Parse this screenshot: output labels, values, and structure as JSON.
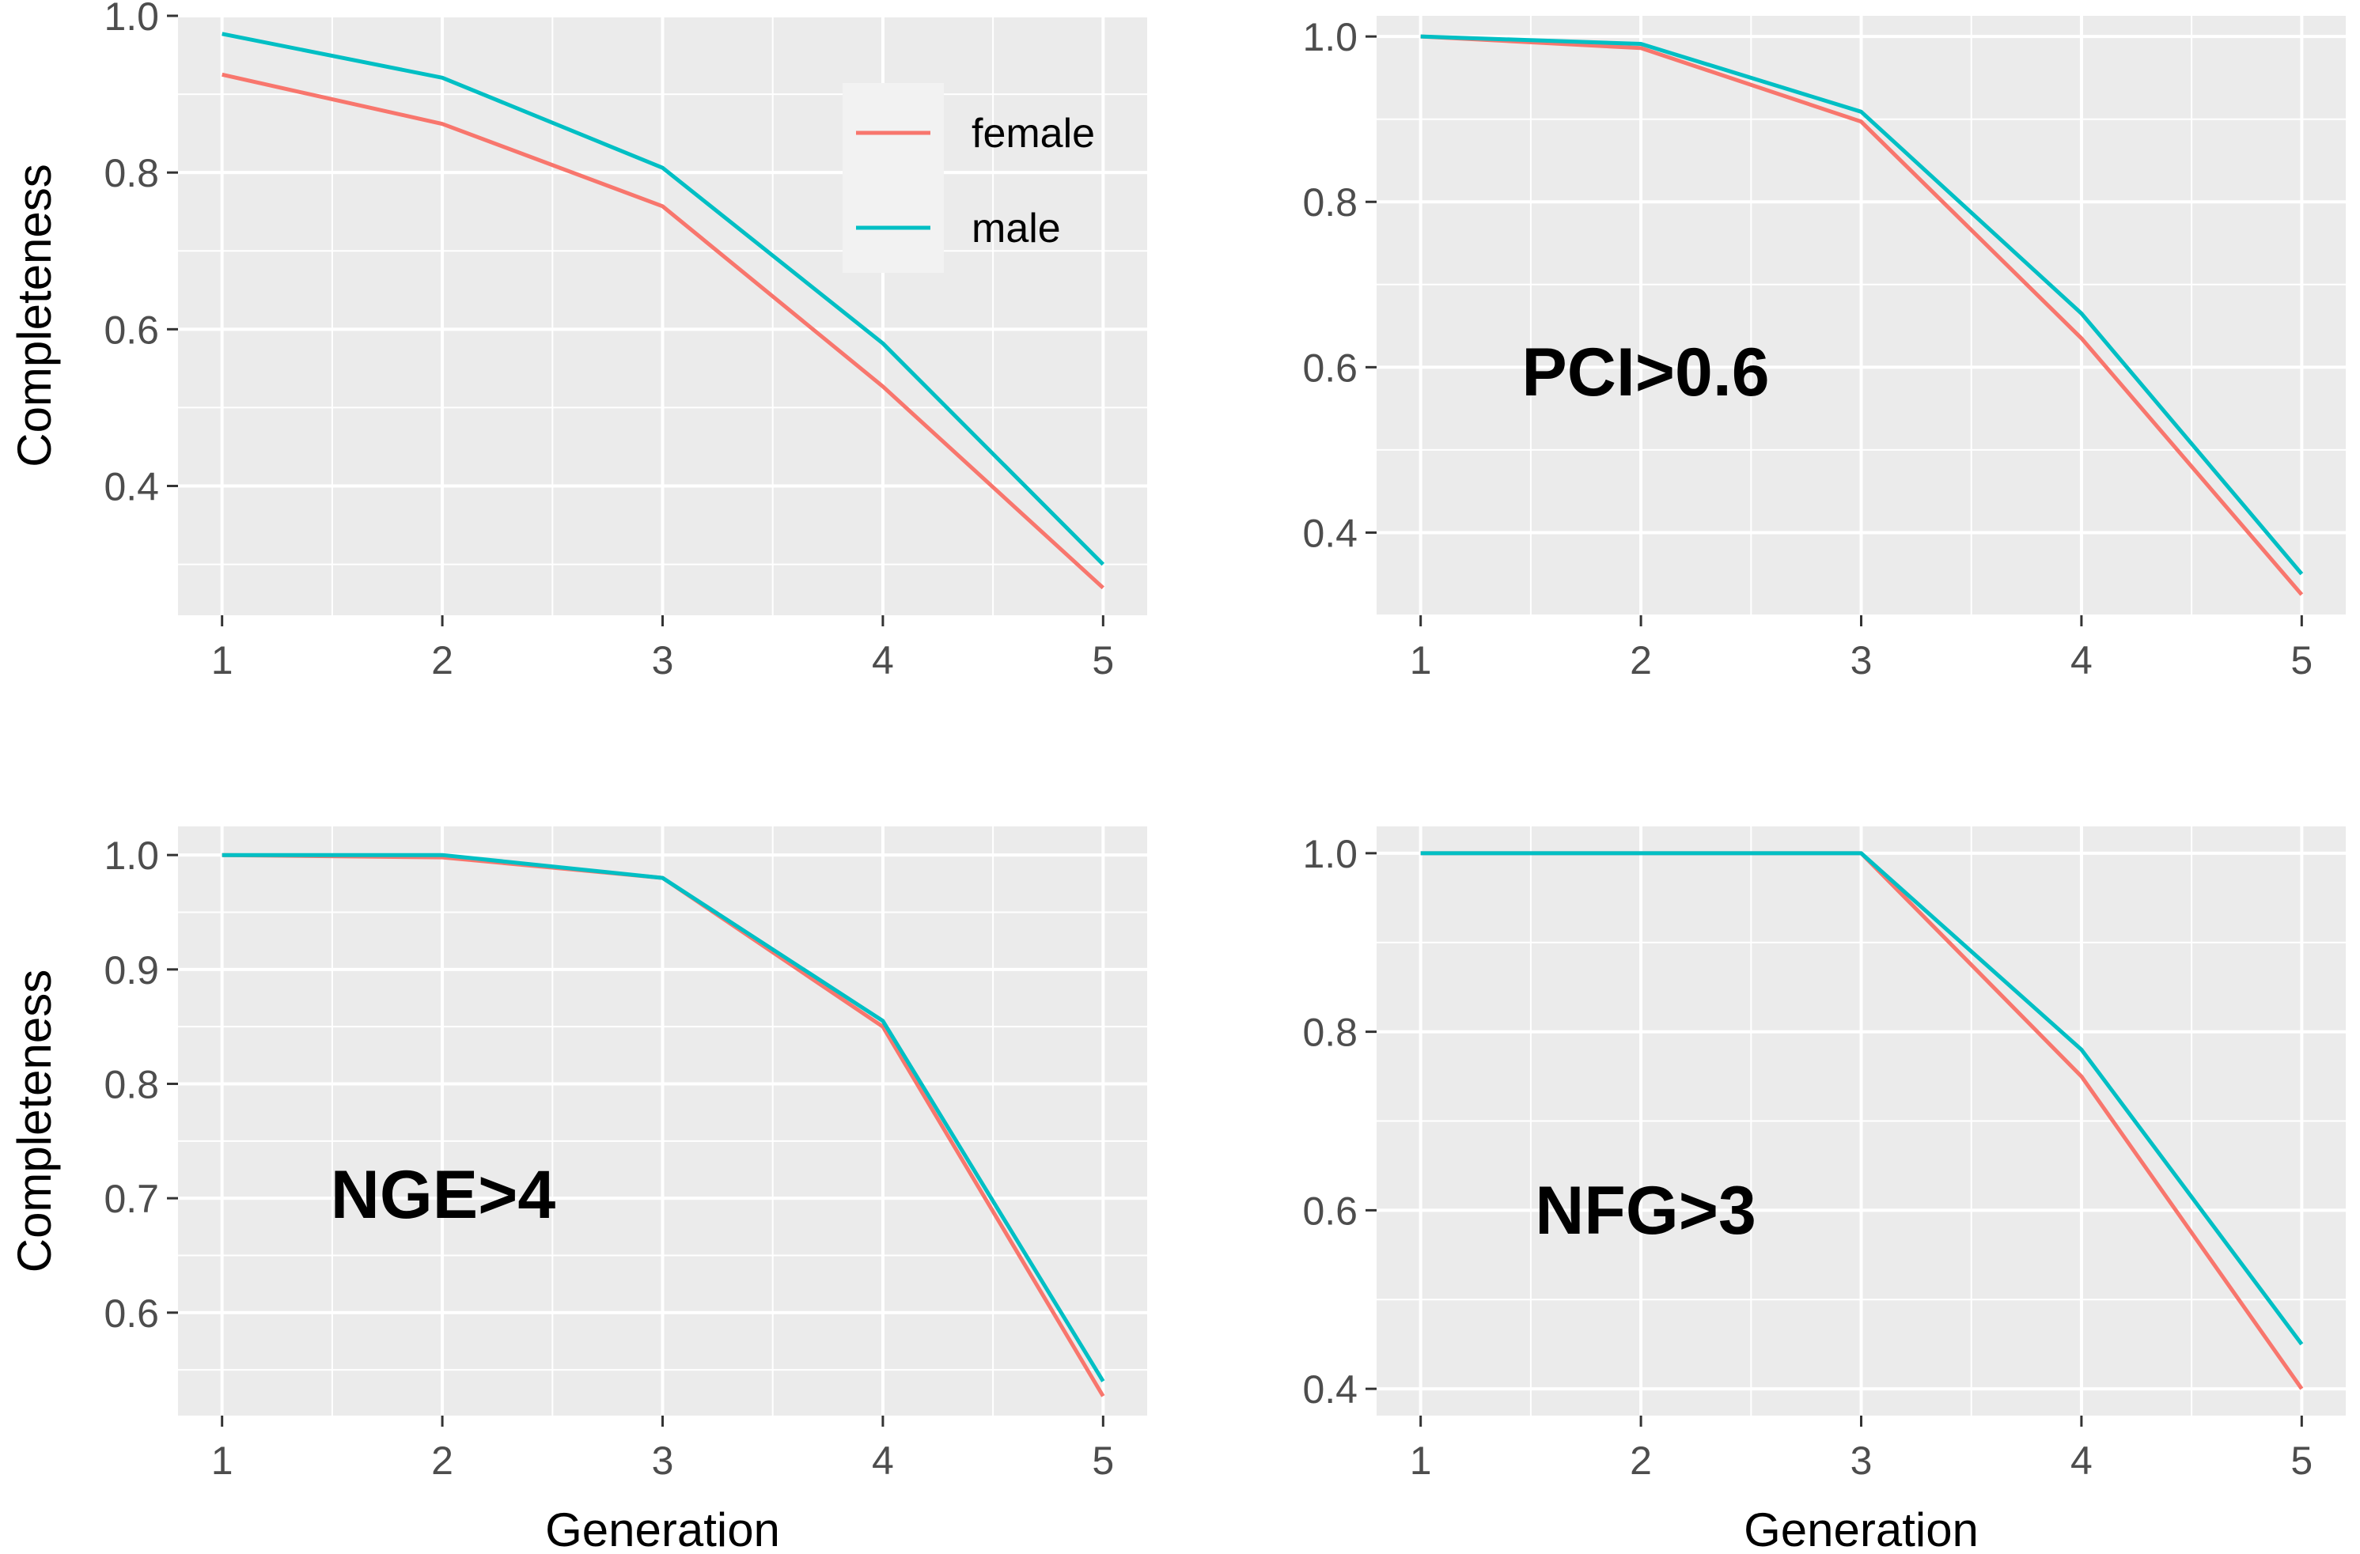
{
  "colors": {
    "female": "#F8766D",
    "male": "#00BFC4",
    "panel_bg": "#EBEBEB",
    "grid": "#FFFFFF",
    "tick": "#333333"
  },
  "legend": {
    "placement": "top-right of first panel",
    "entries": [
      "female",
      "male"
    ]
  },
  "chart_data": [
    {
      "type": "line",
      "title": "",
      "annotation": "",
      "xlabel": "",
      "ylabel": "Completeness",
      "x": [
        1,
        2,
        3,
        4,
        5
      ],
      "xticks": [
        "1",
        "2",
        "3",
        "4",
        "5"
      ],
      "xlim": [
        0.8,
        5.2
      ],
      "ylim": [
        0.235,
        1.0
      ],
      "yticks": [
        0.4,
        0.6,
        0.8,
        1.0
      ],
      "yticklabels": [
        "0.4",
        "0.6",
        "0.8",
        "1.0"
      ],
      "grid": true,
      "series": [
        {
          "name": "female",
          "values": [
            0.925,
            0.862,
            0.757,
            0.527,
            0.27
          ]
        },
        {
          "name": "male",
          "values": [
            0.977,
            0.921,
            0.806,
            0.582,
            0.3
          ]
        }
      ]
    },
    {
      "type": "line",
      "title": "",
      "annotation": "PCI>0.6",
      "xlabel": "",
      "ylabel": "",
      "x": [
        1,
        2,
        3,
        4,
        5
      ],
      "xticks": [
        "1",
        "2",
        "3",
        "4",
        "5"
      ],
      "xlim": [
        0.8,
        5.2
      ],
      "ylim": [
        0.3,
        1.025
      ],
      "yticks": [
        0.4,
        0.6,
        0.8,
        1.0
      ],
      "yticklabels": [
        "0.4",
        "0.6",
        "0.8",
        "1.0"
      ],
      "grid": true,
      "series": [
        {
          "name": "female",
          "values": [
            1.0,
            0.986,
            0.897,
            0.635,
            0.325
          ]
        },
        {
          "name": "male",
          "values": [
            1.0,
            0.991,
            0.909,
            0.665,
            0.35
          ]
        }
      ]
    },
    {
      "type": "line",
      "title": "",
      "annotation": "NGE>4",
      "xlabel": "Generation",
      "ylabel": "Completeness",
      "x": [
        1,
        2,
        3,
        4,
        5
      ],
      "xticks": [
        "1",
        "2",
        "3",
        "4",
        "5"
      ],
      "xlim": [
        0.8,
        5.2
      ],
      "ylim": [
        0.51,
        1.025
      ],
      "yticks": [
        0.6,
        0.7,
        0.8,
        0.9,
        1.0
      ],
      "yticklabels": [
        "0.6",
        "0.7",
        "0.8",
        "0.9",
        "1.0"
      ],
      "grid": true,
      "series": [
        {
          "name": "female",
          "values": [
            1.0,
            0.998,
            0.98,
            0.85,
            0.527
          ]
        },
        {
          "name": "male",
          "values": [
            1.0,
            1.0,
            0.98,
            0.855,
            0.54
          ]
        }
      ]
    },
    {
      "type": "line",
      "title": "",
      "annotation": "NFG>3",
      "xlabel": "Generation",
      "ylabel": "",
      "x": [
        1,
        2,
        3,
        4,
        5
      ],
      "xticks": [
        "1",
        "2",
        "3",
        "4",
        "5"
      ],
      "xlim": [
        0.8,
        5.2
      ],
      "ylim": [
        0.37,
        1.03
      ],
      "yticks": [
        0.4,
        0.6,
        0.8,
        1.0
      ],
      "yticklabels": [
        "0.4",
        "0.6",
        "0.8",
        "1.0"
      ],
      "grid": true,
      "series": [
        {
          "name": "female",
          "values": [
            1.0,
            1.0,
            1.0,
            0.75,
            0.4
          ]
        },
        {
          "name": "male",
          "values": [
            1.0,
            1.0,
            1.0,
            0.78,
            0.45
          ]
        }
      ]
    }
  ]
}
